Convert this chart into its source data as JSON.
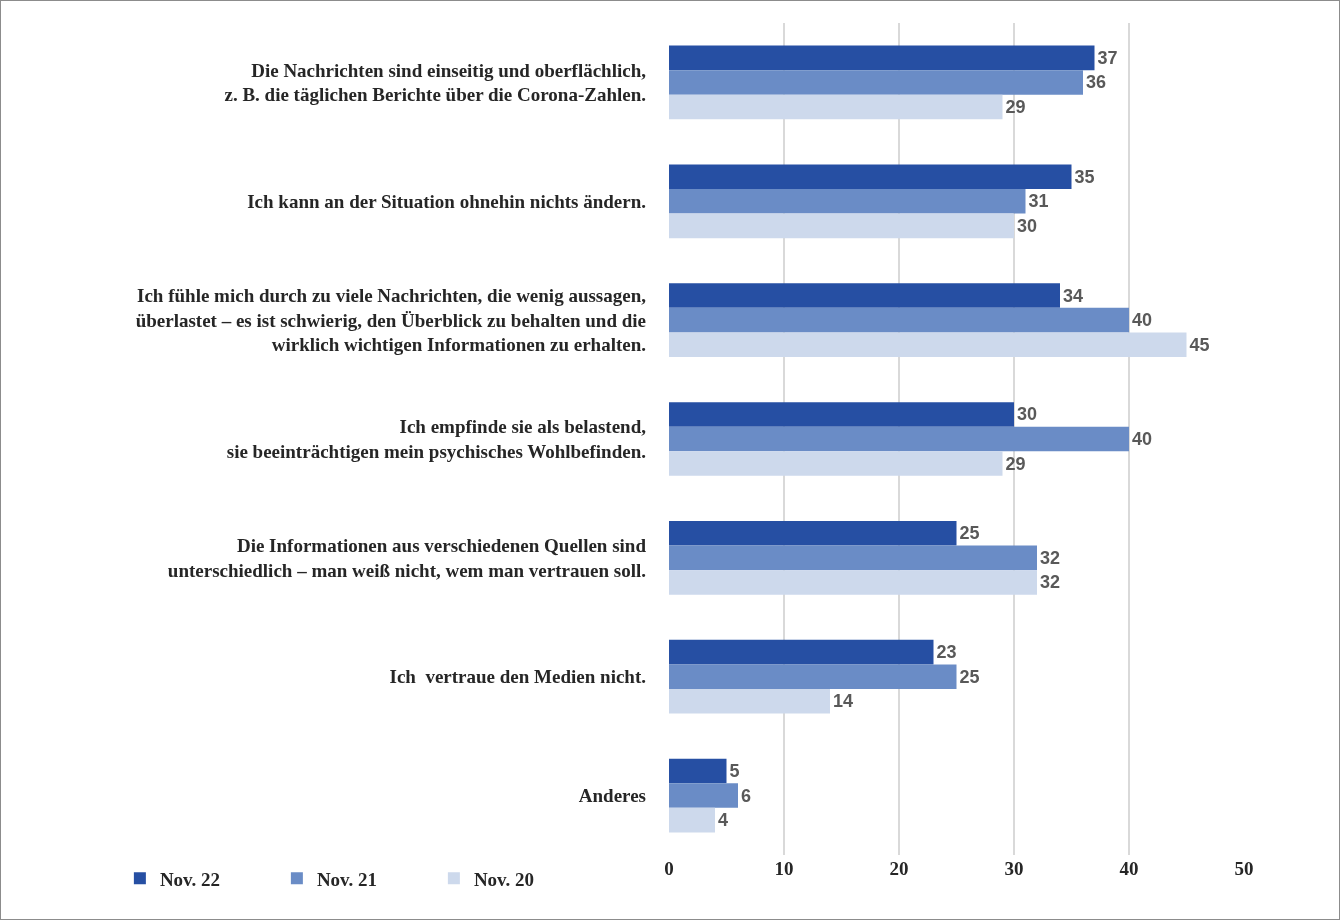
{
  "chart_data": {
    "type": "bar",
    "orientation": "horizontal",
    "categories": [
      "Die Nachrichten sind einseitig und oberflächlich,\nz. B. die täglichen Berichte über die Corona-Zahlen.",
      "Ich kann an der Situation ohnehin nichts ändern.",
      "Ich fühle mich durch zu viele Nachrichten, die wenig aussagen,\nüberlastet – es ist schwierig, den Überblick zu behalten und die\nwirklich wichtigen Informationen zu erhalten.",
      "Ich empfinde sie als belastend,\nsie beeinträchtigen mein psychisches Wohlbefinden.",
      "Die Informationen aus verschiedenen Quellen sind\nunterschiedlich – man weiß nicht, wem man vertrauen soll.",
      "Ich  vertraue den Medien nicht.",
      "Anderes"
    ],
    "series": [
      {
        "name": "Nov. 22",
        "color": "#264fa3",
        "values": [
          37,
          35,
          34,
          30,
          25,
          23,
          5
        ]
      },
      {
        "name": "Nov. 21",
        "color": "#6a8cc6",
        "values": [
          36,
          31,
          40,
          40,
          32,
          25,
          6
        ]
      },
      {
        "name": "Nov. 20",
        "color": "#cdd9ec",
        "values": [
          29,
          30,
          45,
          29,
          32,
          14,
          4
        ]
      }
    ],
    "xlim": [
      0,
      50
    ],
    "xticks": [
      0,
      10,
      20,
      30,
      40,
      50
    ],
    "grid": "x",
    "legend": "bottom left",
    "data_labels": true
  }
}
